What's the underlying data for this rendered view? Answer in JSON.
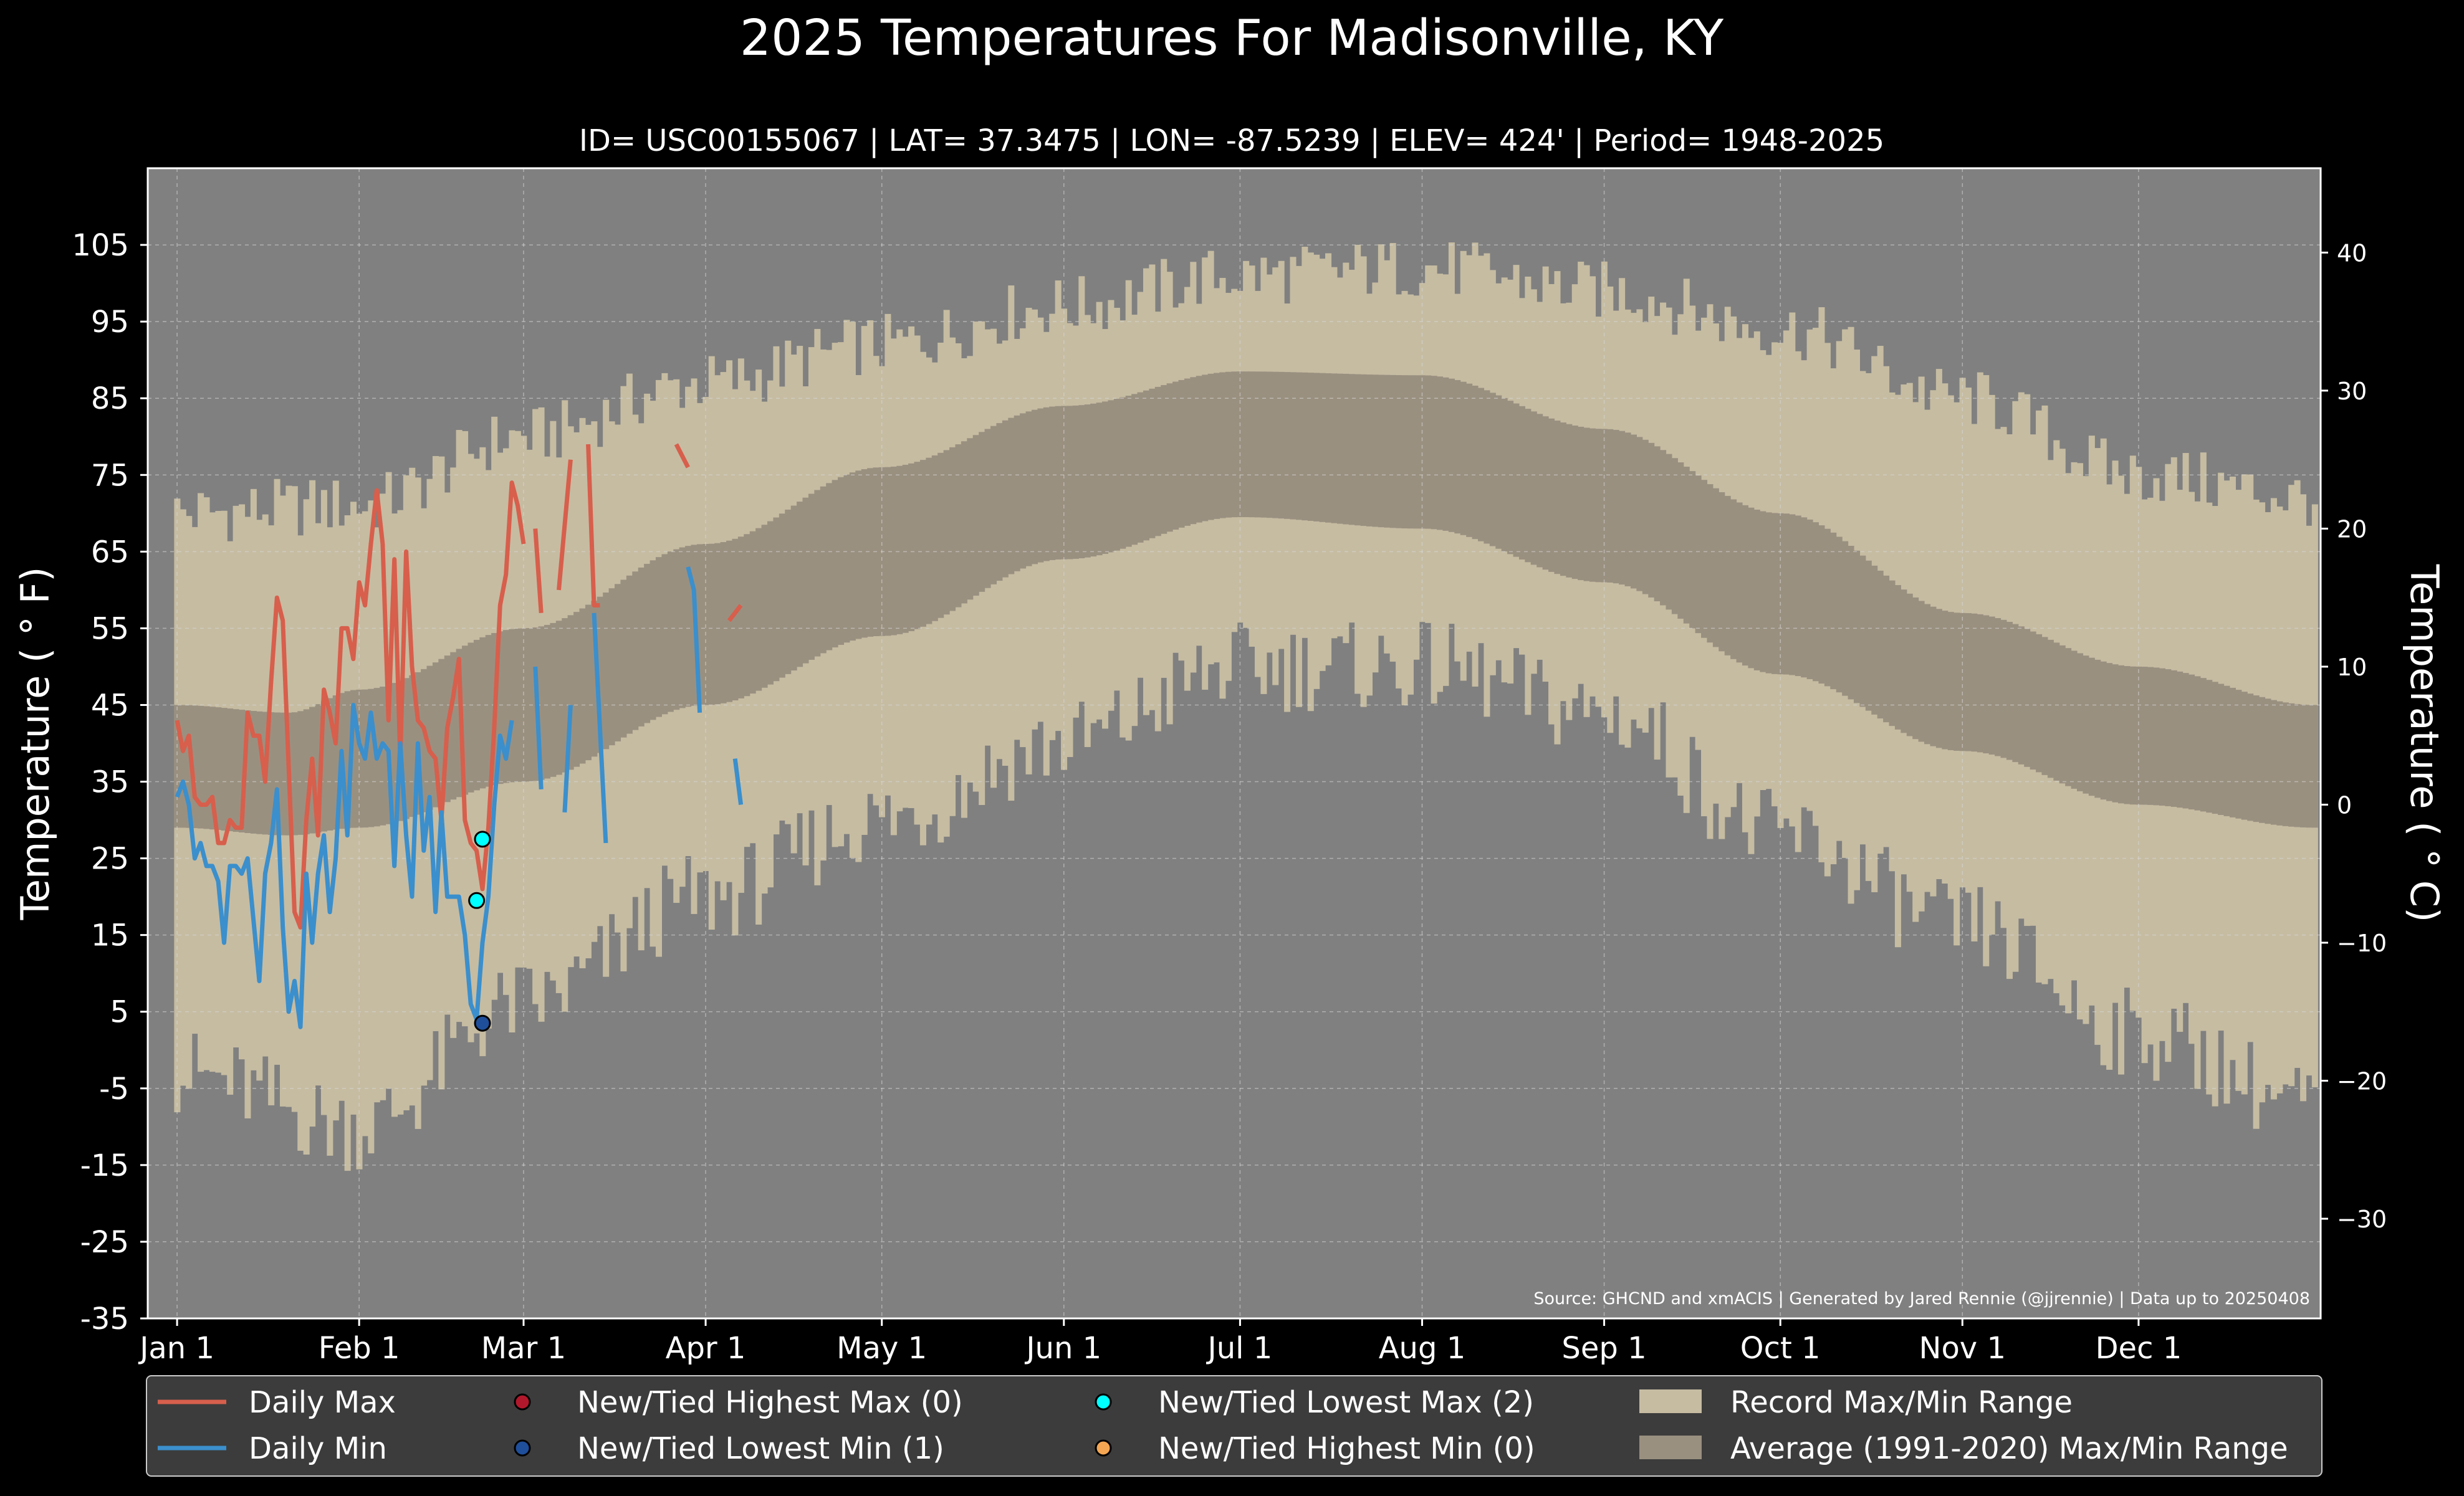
{
  "chart_data": {
    "type": "line",
    "title": "2025 Temperatures For Madisonville, KY",
    "subtitle": "ID= USC00155067 | LAT= 37.3475 | LON= -87.5239 | ELEV= 424' | Period= 1948-2025",
    "ylabel_left": "Temperature ( $^\\circ$F)",
    "ylabel_left_display": "Temperature ( ° F)",
    "ylabel_right_display": "Temperature ( ° C)",
    "ylim_f": [
      -35,
      115
    ],
    "yticks_f": [
      -35,
      -25,
      -15,
      -5,
      5,
      15,
      25,
      35,
      45,
      55,
      65,
      75,
      85,
      95,
      105
    ],
    "ytick_labels_f": [
      "-35",
      "-25",
      "-15",
      "-5",
      "5",
      "15",
      "25",
      "35",
      "45",
      "55",
      "65",
      "75",
      "85",
      "95",
      "105"
    ],
    "yticks_c": [
      -30,
      -20,
      -10,
      0,
      10,
      20,
      30,
      40
    ],
    "ytick_labels_c": [
      "−30",
      "−20",
      "−10",
      "0",
      "10",
      "20",
      "30",
      "40"
    ],
    "xlim_doy": [
      -4,
      366
    ],
    "xticks_doy": [
      1,
      32,
      60,
      91,
      121,
      152,
      182,
      213,
      244,
      274,
      305,
      335
    ],
    "xtick_labels": [
      "Jan 1",
      "Feb 1",
      "Mar 1",
      "Apr 1",
      "May 1",
      "Jun 1",
      "Jul 1",
      "Aug 1",
      "Sep 1",
      "Oct 1",
      "Nov 1",
      "Dec 1"
    ],
    "grid": true,
    "legend_position": "bottom",
    "source": "Source: GHCND and xmACIS | Generated by Jared Rennie (@jjrennie) | Data up to 20250408",
    "record_range": {
      "max_anchors": [
        [
          1,
          70
        ],
        [
          32,
          71
        ],
        [
          60,
          80
        ],
        [
          91,
          87
        ],
        [
          121,
          92
        ],
        [
          152,
          97
        ],
        [
          182,
          101
        ],
        [
          213,
          102
        ],
        [
          244,
          99
        ],
        [
          274,
          94
        ],
        [
          305,
          85
        ],
        [
          335,
          75
        ],
        [
          365,
          72
        ]
      ],
      "min_anchors": [
        [
          1,
          -3
        ],
        [
          32,
          -10
        ],
        [
          60,
          6
        ],
        [
          91,
          20
        ],
        [
          121,
          30
        ],
        [
          152,
          40
        ],
        [
          182,
          50
        ],
        [
          213,
          50
        ],
        [
          244,
          44
        ],
        [
          274,
          28
        ],
        [
          305,
          16
        ],
        [
          335,
          2
        ],
        [
          365,
          -7
        ]
      ]
    },
    "average_range": {
      "max_anchors": [
        [
          1,
          45
        ],
        [
          20,
          44
        ],
        [
          32,
          47
        ],
        [
          60,
          55
        ],
        [
          91,
          66
        ],
        [
          121,
          76
        ],
        [
          152,
          84
        ],
        [
          182,
          88.5
        ],
        [
          213,
          88
        ],
        [
          244,
          81
        ],
        [
          274,
          70
        ],
        [
          305,
          57
        ],
        [
          335,
          50
        ],
        [
          365,
          45
        ]
      ],
      "min_anchors": [
        [
          1,
          29
        ],
        [
          20,
          28
        ],
        [
          32,
          29
        ],
        [
          60,
          35
        ],
        [
          91,
          45
        ],
        [
          121,
          54
        ],
        [
          152,
          64
        ],
        [
          182,
          69.5
        ],
        [
          213,
          68
        ],
        [
          244,
          61
        ],
        [
          274,
          49
        ],
        [
          305,
          39
        ],
        [
          335,
          32
        ],
        [
          365,
          29
        ]
      ]
    },
    "series": [
      {
        "name": "Daily Max",
        "color": "#d75f4c",
        "segments": [
          [
            [
              1,
              43
            ],
            [
              2,
              39
            ],
            [
              3,
              41
            ],
            [
              4,
              33
            ],
            [
              5,
              32
            ],
            [
              6,
              32
            ],
            [
              7,
              33
            ],
            [
              8,
              27
            ],
            [
              9,
              27
            ],
            [
              10,
              30
            ],
            [
              11,
              29
            ],
            [
              12,
              29
            ],
            [
              13,
              44
            ],
            [
              14,
              41
            ],
            [
              15,
              41
            ],
            [
              16,
              35
            ],
            [
              17,
              48
            ],
            [
              18,
              59
            ],
            [
              19,
              56
            ],
            [
              20,
              37
            ],
            [
              21,
              18
            ],
            [
              22,
              16
            ],
            [
              23,
              30
            ],
            [
              24,
              38
            ],
            [
              25,
              28
            ],
            [
              26,
              47
            ],
            [
              27,
              44
            ],
            [
              28,
              40
            ],
            [
              29,
              55
            ],
            [
              30,
              55
            ],
            [
              31,
              51
            ],
            [
              32,
              61
            ],
            [
              33,
              58
            ],
            [
              34,
              66
            ],
            [
              35,
              73
            ],
            [
              36,
              66
            ],
            [
              37,
              43
            ],
            [
              38,
              64
            ],
            [
              39,
              38
            ],
            [
              40,
              65
            ],
            [
              41,
              50
            ],
            [
              42,
              43
            ],
            [
              43,
              42
            ],
            [
              44,
              39
            ],
            [
              45,
              38
            ],
            [
              46,
              30
            ],
            [
              47,
              42
            ],
            [
              48,
              46
            ],
            [
              49,
              51
            ],
            [
              50,
              30
            ],
            [
              51,
              27
            ],
            [
              52,
              26
            ],
            [
              53,
              21
            ],
            [
              54,
              29
            ],
            [
              55,
              42
            ],
            [
              56,
              58
            ],
            [
              57,
              62
            ],
            [
              58,
              74
            ],
            [
              59,
              71
            ],
            [
              60,
              66
            ]
          ],
          [
            [
              62,
              68
            ],
            [
              63,
              57
            ]
          ],
          [
            [
              66,
              60
            ],
            [
              68,
              77
            ]
          ],
          [
            [
              71,
              79
            ],
            [
              72,
              58
            ],
            [
              73,
              58
            ]
          ],
          [
            [
              86,
              79
            ],
            [
              88,
              76
            ]
          ],
          [
            [
              95,
              56
            ],
            [
              97,
              58
            ]
          ]
        ]
      },
      {
        "name": "Daily Min",
        "color": "#3b8fcc",
        "segments": [
          [
            [
              1,
              33
            ],
            [
              2,
              35
            ],
            [
              3,
              32
            ],
            [
              4,
              25
            ],
            [
              5,
              27
            ],
            [
              6,
              24
            ],
            [
              7,
              24
            ],
            [
              8,
              22
            ],
            [
              9,
              14
            ],
            [
              10,
              24
            ],
            [
              11,
              24
            ],
            [
              12,
              23
            ],
            [
              13,
              25
            ],
            [
              14,
              17
            ],
            [
              15,
              9
            ],
            [
              16,
              23
            ],
            [
              17,
              27
            ],
            [
              18,
              34
            ],
            [
              19,
              16
            ],
            [
              20,
              5
            ],
            [
              21,
              9
            ],
            [
              22,
              3
            ],
            [
              23,
              23
            ],
            [
              24,
              14
            ],
            [
              25,
              23
            ],
            [
              26,
              28
            ],
            [
              27,
              18
            ],
            [
              28,
              25
            ],
            [
              29,
              39
            ],
            [
              30,
              28
            ],
            [
              31,
              45
            ],
            [
              32,
              40
            ],
            [
              33,
              38
            ],
            [
              34,
              44
            ],
            [
              35,
              38
            ],
            [
              36,
              40
            ],
            [
              37,
              39
            ],
            [
              38,
              24
            ],
            [
              39,
              40
            ],
            [
              40,
              28
            ],
            [
              41,
              20
            ],
            [
              42,
              40
            ],
            [
              43,
              26
            ],
            [
              44,
              33
            ],
            [
              45,
              18
            ],
            [
              46,
              31
            ],
            [
              47,
              20
            ],
            [
              48,
              20
            ],
            [
              49,
              20
            ],
            [
              50,
              15
            ],
            [
              51,
              6
            ],
            [
              52,
              4
            ],
            [
              53,
              14
            ],
            [
              54,
              20
            ],
            [
              55,
              32
            ],
            [
              56,
              41
            ],
            [
              57,
              38
            ],
            [
              58,
              43
            ]
          ],
          [
            [
              62,
              50
            ],
            [
              63,
              34
            ]
          ],
          [
            [
              67,
              31
            ],
            [
              68,
              45
            ]
          ],
          [
            [
              72,
              57
            ],
            [
              74,
              27
            ]
          ],
          [
            [
              88,
              63
            ],
            [
              89,
              60
            ],
            [
              90,
              44
            ]
          ],
          [
            [
              96,
              38
            ],
            [
              97,
              32
            ]
          ]
        ]
      }
    ],
    "markers": [
      {
        "name": "New/Tied Lowest Max",
        "color": "#00ffff",
        "points": [
          [
            52,
            19.5
          ],
          [
            53,
            27.5
          ]
        ]
      },
      {
        "name": "New/Tied Lowest Min",
        "color": "#1f4e9a",
        "points": [
          [
            53,
            3.5
          ]
        ]
      }
    ],
    "legend": [
      {
        "label": "Daily Max",
        "kind": "line",
        "color": "#d75f4c"
      },
      {
        "label": "Daily Min",
        "kind": "line",
        "color": "#3b8fcc"
      },
      {
        "label": "New/Tied Highest Max (0)",
        "kind": "dot",
        "color": "#b2182b"
      },
      {
        "label": "New/Tied Lowest Min (1)",
        "kind": "dot",
        "color": "#1f4e9a"
      },
      {
        "label": "New/Tied Lowest Max (2)",
        "kind": "dot",
        "color": "#00ffff"
      },
      {
        "label": "New/Tied Highest Min (0)",
        "kind": "dot",
        "color": "#f4a652"
      },
      {
        "label": "Record Max/Min Range",
        "kind": "patch",
        "color": "#c6bca2"
      },
      {
        "label": "Average (1991-2020) Max/Min Range",
        "kind": "patch",
        "color": "#9a9080"
      }
    ]
  }
}
